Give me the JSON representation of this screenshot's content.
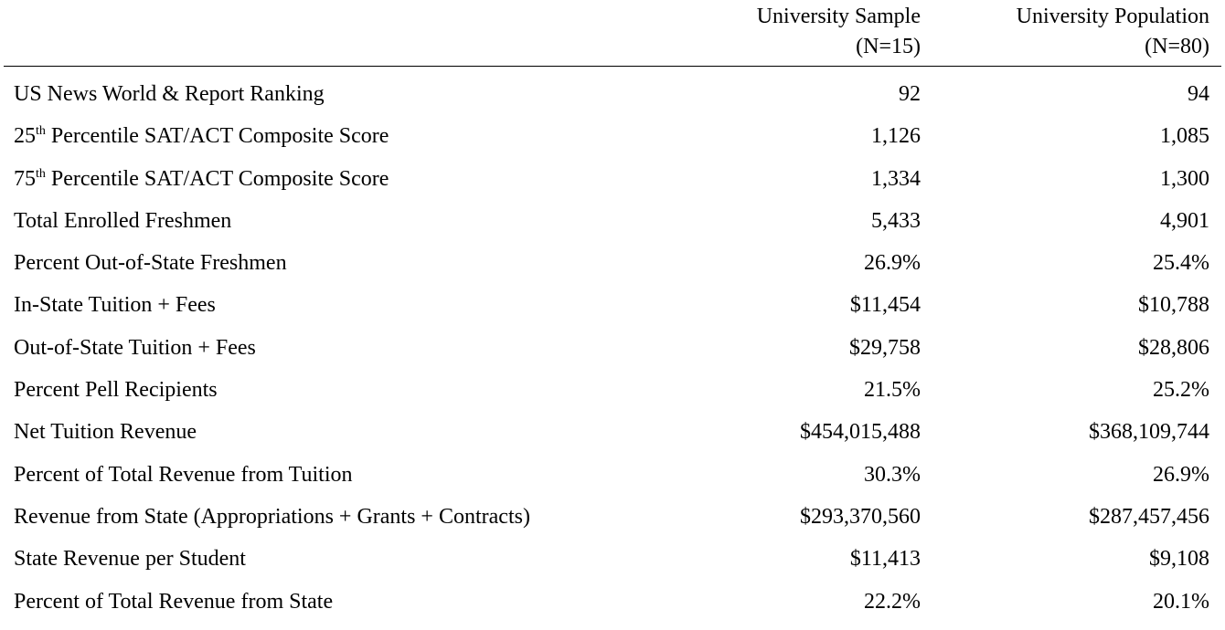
{
  "columns": {
    "sample": {
      "line1": "University Sample",
      "line2": "(N=15)"
    },
    "population": {
      "line1": "University Population",
      "line2": "(N=80)"
    }
  },
  "rows": [
    {
      "label": "US News World & Report Ranking",
      "sample": "92",
      "population": "94"
    },
    {
      "label_sup": "25",
      "sup": "th",
      "label_rest": " Percentile SAT/ACT Composite Score",
      "sample": "1,126",
      "population": "1,085"
    },
    {
      "label_sup": "75",
      "sup": "th",
      "label_rest": " Percentile SAT/ACT Composite Score",
      "sample": "1,334",
      "population": "1,300"
    },
    {
      "label": "Total Enrolled Freshmen",
      "sample": "5,433",
      "population": "4,901"
    },
    {
      "label": "Percent Out-of-State Freshmen",
      "sample": "26.9%",
      "population": "25.4%"
    },
    {
      "label": "In-State Tuition + Fees",
      "sample": "$11,454",
      "population": "$10,788"
    },
    {
      "label": "Out-of-State Tuition + Fees",
      "sample": "$29,758",
      "population": "$28,806"
    },
    {
      "label": "Percent Pell Recipients",
      "sample": "21.5%",
      "population": "25.2%"
    },
    {
      "label": "Net Tuition Revenue",
      "sample": "$454,015,488",
      "population": "$368,109,744"
    },
    {
      "label": "Percent of Total Revenue from Tuition",
      "sample": "30.3%",
      "population": "26.9%"
    },
    {
      "label": "Revenue from State (Appropriations + Grants + Contracts)",
      "sample": "$293,370,560",
      "population": "$287,457,456"
    },
    {
      "label": "State Revenue per Student",
      "sample": "$11,413",
      "population": "$9,108"
    },
    {
      "label": "Percent of Total Revenue from State",
      "sample": "22.2%",
      "population": "20.1%"
    }
  ]
}
